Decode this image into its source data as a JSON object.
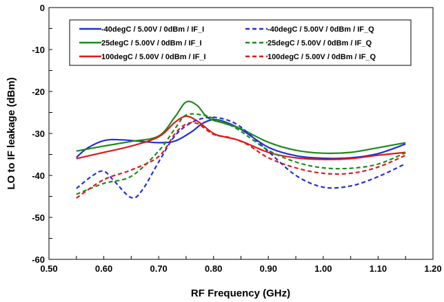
{
  "chart_data": {
    "type": "line",
    "xlabel": "RF Frequency (GHz)",
    "ylabel": "LO to IF leakage (dBm)",
    "xlim": [
      0.5,
      1.2
    ],
    "ylim": [
      -60,
      0
    ],
    "x_ticks": [
      "0.50",
      "0.60",
      "0.70",
      "0.80",
      "0.90",
      "1.00",
      "1.10",
      "1.20"
    ],
    "y_ticks": [
      "0",
      "-10",
      "-20",
      "-30",
      "-40",
      "-50",
      "-60"
    ],
    "grid": false,
    "legend_position": "top",
    "series": [
      {
        "name": "-40degC /  5.00V /  0dBm /  IF_I",
        "color": "#1f2fd6",
        "dash": "solid",
        "points": [
          [
            0.55,
            -35.7
          ],
          [
            0.57,
            -33.5
          ],
          [
            0.6,
            -31.7
          ],
          [
            0.63,
            -31.5
          ],
          [
            0.67,
            -31.9
          ],
          [
            0.7,
            -32.2
          ],
          [
            0.73,
            -31.8
          ],
          [
            0.76,
            -29.6
          ],
          [
            0.78,
            -27.6
          ],
          [
            0.8,
            -26.7
          ],
          [
            0.82,
            -27.2
          ],
          [
            0.85,
            -29.0
          ],
          [
            0.9,
            -33.3
          ],
          [
            0.95,
            -35.3
          ],
          [
            1.0,
            -35.9
          ],
          [
            1.05,
            -35.8
          ],
          [
            1.1,
            -34.8
          ],
          [
            1.15,
            -32.5
          ]
        ]
      },
      {
        "name": "25degC /  5.00V /  0dBm /  IF_I",
        "color": "#1a8a1a",
        "dash": "solid",
        "points": [
          [
            0.55,
            -34.2
          ],
          [
            0.6,
            -33.0
          ],
          [
            0.65,
            -31.9
          ],
          [
            0.7,
            -30.6
          ],
          [
            0.73,
            -26.0
          ],
          [
            0.75,
            -22.5
          ],
          [
            0.77,
            -23.3
          ],
          [
            0.79,
            -26.3
          ],
          [
            0.82,
            -27.6
          ],
          [
            0.85,
            -28.9
          ],
          [
            0.9,
            -32.1
          ],
          [
            0.95,
            -34.0
          ],
          [
            1.0,
            -34.7
          ],
          [
            1.05,
            -34.5
          ],
          [
            1.1,
            -33.4
          ],
          [
            1.15,
            -32.2
          ]
        ]
      },
      {
        "name": "100degC /  5.00V /  0dBm /  IF_I",
        "color": "#e01818",
        "dash": "solid",
        "points": [
          [
            0.55,
            -36.0
          ],
          [
            0.6,
            -34.5
          ],
          [
            0.65,
            -33.0
          ],
          [
            0.7,
            -30.8
          ],
          [
            0.73,
            -27.3
          ],
          [
            0.75,
            -25.9
          ],
          [
            0.77,
            -27.0
          ],
          [
            0.8,
            -30.0
          ],
          [
            0.82,
            -30.8
          ],
          [
            0.85,
            -31.8
          ],
          [
            0.9,
            -34.5
          ],
          [
            0.95,
            -35.8
          ],
          [
            1.0,
            -36.2
          ],
          [
            1.05,
            -36.0
          ],
          [
            1.1,
            -35.2
          ],
          [
            1.15,
            -34.5
          ]
        ]
      },
      {
        "name": "-40degC /  5.00V /  0dBm /  IF_Q",
        "color": "#1f2fd6",
        "dash": "dashed",
        "points": [
          [
            0.55,
            -43.1
          ],
          [
            0.58,
            -40.0
          ],
          [
            0.6,
            -39.0
          ],
          [
            0.62,
            -41.5
          ],
          [
            0.65,
            -45.3
          ],
          [
            0.67,
            -43.5
          ],
          [
            0.7,
            -36.8
          ],
          [
            0.73,
            -30.5
          ],
          [
            0.76,
            -27.4
          ],
          [
            0.79,
            -26.2
          ],
          [
            0.82,
            -26.6
          ],
          [
            0.85,
            -28.5
          ],
          [
            0.9,
            -34.3
          ],
          [
            0.95,
            -40.0
          ],
          [
            1.0,
            -42.8
          ],
          [
            1.05,
            -42.5
          ],
          [
            1.1,
            -40.3
          ],
          [
            1.15,
            -37.2
          ]
        ]
      },
      {
        "name": "25degC /  5.00V /  0dBm /  IF_Q",
        "color": "#1a8a1a",
        "dash": "dashed",
        "points": [
          [
            0.55,
            -44.5
          ],
          [
            0.6,
            -41.9
          ],
          [
            0.65,
            -40.2
          ],
          [
            0.7,
            -34.2
          ],
          [
            0.73,
            -28.8
          ],
          [
            0.75,
            -25.6
          ],
          [
            0.78,
            -25.6
          ],
          [
            0.8,
            -26.4
          ],
          [
            0.83,
            -28.0
          ],
          [
            0.85,
            -29.5
          ],
          [
            0.9,
            -34.0
          ],
          [
            0.95,
            -36.8
          ],
          [
            1.0,
            -38.2
          ],
          [
            1.05,
            -38.3
          ],
          [
            1.1,
            -37.3
          ],
          [
            1.15,
            -34.6
          ]
        ]
      },
      {
        "name": "100degC /  5.00V /  0dBm /  IF_Q",
        "color": "#e01818",
        "dash": "dashed",
        "points": [
          [
            0.55,
            -45.4
          ],
          [
            0.6,
            -41.0
          ],
          [
            0.65,
            -38.7
          ],
          [
            0.7,
            -35.5
          ],
          [
            0.73,
            -30.0
          ],
          [
            0.75,
            -27.8
          ],
          [
            0.77,
            -27.6
          ],
          [
            0.8,
            -30.2
          ],
          [
            0.83,
            -31.0
          ],
          [
            0.86,
            -32.5
          ],
          [
            0.9,
            -35.8
          ],
          [
            0.95,
            -38.2
          ],
          [
            1.0,
            -39.5
          ],
          [
            1.05,
            -39.5
          ],
          [
            1.1,
            -38.0
          ],
          [
            1.15,
            -35.2
          ]
        ]
      }
    ]
  }
}
